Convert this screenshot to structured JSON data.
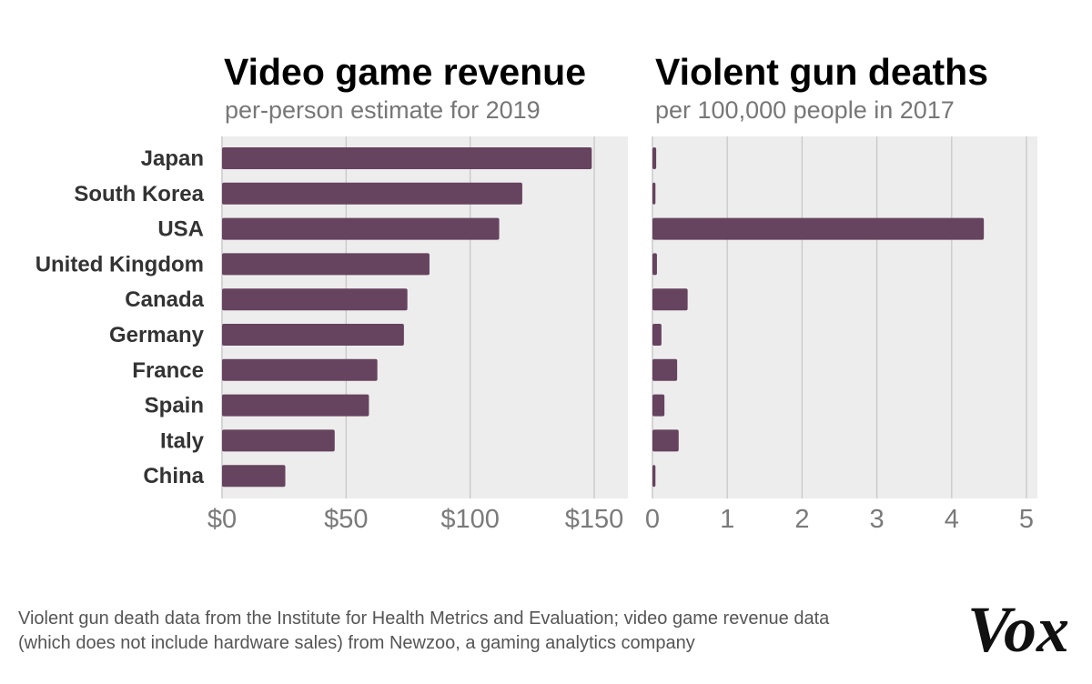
{
  "chart_data": [
    {
      "type": "bar",
      "orientation": "horizontal",
      "title": "Video game revenue",
      "subtitle": "per-person estimate for 2019",
      "categories": [
        "Japan",
        "South Korea",
        "USA",
        "United Kingdom",
        "Canada",
        "Germany",
        "France",
        "Spain",
        "Italy",
        "China"
      ],
      "values": [
        149,
        121,
        111.7,
        83.6,
        74.7,
        73.3,
        62.6,
        59.2,
        45.4,
        25.5
      ],
      "xlim": [
        0,
        150
      ],
      "ticks": [
        0,
        50,
        100,
        150
      ],
      "tick_labels": [
        "$0",
        "$50",
        "$100",
        "$150"
      ],
      "grid": true
    },
    {
      "type": "bar",
      "orientation": "horizontal",
      "title": "Violent gun deaths",
      "subtitle": "per 100,000 people in 2017",
      "categories": [
        "Japan",
        "South Korea",
        "USA",
        "United Kingdom",
        "Canada",
        "Germany",
        "France",
        "Spain",
        "Italy",
        "China"
      ],
      "values": [
        0.05,
        0.04,
        4.43,
        0.06,
        0.47,
        0.12,
        0.33,
        0.16,
        0.35,
        0.04
      ],
      "xlim": [
        0,
        5
      ],
      "ticks": [
        0,
        1,
        2,
        3,
        4,
        5
      ],
      "tick_labels": [
        "0",
        "1",
        "2",
        "3",
        "4",
        "5"
      ],
      "grid": true
    }
  ],
  "colors": {
    "bar": "#66435e",
    "plot_background": "#ededed",
    "grid": "#c8c8c8"
  },
  "footer": {
    "note_line1": "Violent gun death data from the Institute for Health Metrics and Evaluation; video game revenue data",
    "note_line2": "(which does not include hardware sales) from Newzoo, a gaming analytics company",
    "logo": "Vox"
  }
}
